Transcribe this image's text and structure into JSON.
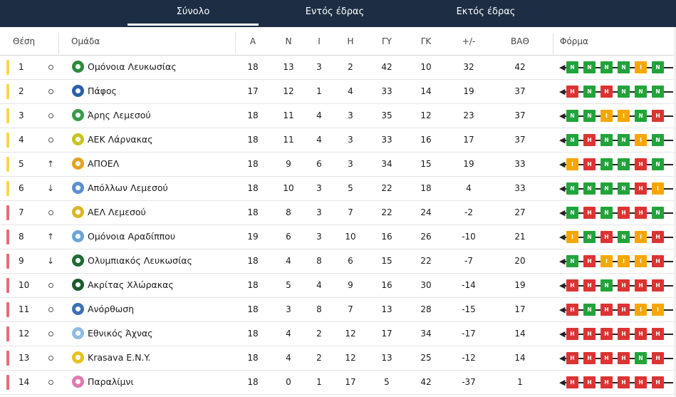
{
  "tabs": [
    {
      "label": "Σύνολο",
      "active": true
    },
    {
      "label": "Εντός έδρας",
      "active": false
    },
    {
      "label": "Εκτός έδρας",
      "active": false
    }
  ],
  "headers": {
    "pos": "Θέση",
    "team": "Ομάδα",
    "played": "Α",
    "won": "Ν",
    "draw": "Ι",
    "lost": "Η",
    "gf": "ΓΥ",
    "ga": "ΓΚ",
    "diff": "+/-",
    "pts": "ΒΑΘ",
    "form": "Φόρμα"
  },
  "colors": {
    "win": "#21a43a",
    "draw": "#f5a700",
    "loss": "#dd3333",
    "zone_top": "#f7d84a",
    "zone_bottom": "#e96b78",
    "tabs_bg": "#1c2d44"
  },
  "form_letters": {
    "W": "N",
    "D": "I",
    "L": "H"
  },
  "rows": [
    {
      "pos": "1",
      "move": "same",
      "team": "Ομόνοια Λευκωσίας",
      "p": "18",
      "w": "13",
      "d": "3",
      "l": "2",
      "gf": "42",
      "ga": "10",
      "diff": "32",
      "pts": "42",
      "form": [
        "W",
        "W",
        "W",
        "W",
        "D",
        "W"
      ],
      "zone": "top",
      "logo": "#2b8a3e"
    },
    {
      "pos": "2",
      "move": "same",
      "team": "Πάφος",
      "p": "17",
      "w": "12",
      "d": "1",
      "l": "4",
      "gf": "33",
      "ga": "14",
      "diff": "19",
      "pts": "37",
      "form": [
        "L",
        "W",
        "L",
        "W",
        "W",
        "W"
      ],
      "zone": "top",
      "logo": "#2a5fa8"
    },
    {
      "pos": "3",
      "move": "same",
      "team": "Άρης Λεμεσού",
      "p": "18",
      "w": "11",
      "d": "4",
      "l": "3",
      "gf": "35",
      "ga": "12",
      "diff": "23",
      "pts": "37",
      "form": [
        "W",
        "W",
        "D",
        "D",
        "W",
        "L"
      ],
      "zone": "top",
      "logo": "#3a9a4b"
    },
    {
      "pos": "4",
      "move": "same",
      "team": "ΑΕΚ Λάρνακας",
      "p": "18",
      "w": "11",
      "d": "4",
      "l": "3",
      "gf": "33",
      "ga": "16",
      "diff": "17",
      "pts": "37",
      "form": [
        "W",
        "L",
        "W",
        "W",
        "D",
        "W"
      ],
      "zone": "top",
      "logo": "#c6c51f"
    },
    {
      "pos": "5",
      "move": "up",
      "team": "ΑΠΟΕΛ",
      "p": "18",
      "w": "9",
      "d": "6",
      "l": "3",
      "gf": "34",
      "ga": "15",
      "diff": "19",
      "pts": "33",
      "form": [
        "D",
        "L",
        "W",
        "W",
        "L",
        "W"
      ],
      "zone": "top",
      "logo": "#e5a321"
    },
    {
      "pos": "6",
      "move": "down",
      "team": "Απόλλων Λεμεσού",
      "p": "18",
      "w": "10",
      "d": "3",
      "l": "5",
      "gf": "22",
      "ga": "18",
      "diff": "4",
      "pts": "33",
      "form": [
        "W",
        "W",
        "W",
        "W",
        "L",
        "D"
      ],
      "zone": "top",
      "logo": "#5a8fd0"
    },
    {
      "pos": "7",
      "move": "same",
      "team": "ΑΕΛ Λεμεσού",
      "p": "18",
      "w": "8",
      "d": "3",
      "l": "7",
      "gf": "22",
      "ga": "24",
      "diff": "-2",
      "pts": "27",
      "form": [
        "W",
        "L",
        "W",
        "L",
        "L",
        "W"
      ],
      "zone": "bottom",
      "logo": "#d9b72a"
    },
    {
      "pos": "8",
      "move": "up",
      "team": "Ομόνοια Αραδίππου",
      "p": "19",
      "w": "6",
      "d": "3",
      "l": "10",
      "gf": "16",
      "ga": "26",
      "diff": "-10",
      "pts": "21",
      "form": [
        "D",
        "W",
        "L",
        "W",
        "D",
        "L"
      ],
      "zone": "bottom",
      "logo": "#6ba4d8"
    },
    {
      "pos": "9",
      "move": "down",
      "team": "Ολυμπιακός Λευκωσίας",
      "p": "18",
      "w": "4",
      "d": "8",
      "l": "6",
      "gf": "15",
      "ga": "22",
      "diff": "-7",
      "pts": "20",
      "form": [
        "W",
        "L",
        "D",
        "D",
        "D",
        "L"
      ],
      "zone": "bottom",
      "logo": "#1f6a35"
    },
    {
      "pos": "10",
      "move": "same",
      "team": "Ακρίτας Χλώρακας",
      "p": "18",
      "w": "5",
      "d": "4",
      "l": "9",
      "gf": "16",
      "ga": "30",
      "diff": "-14",
      "pts": "19",
      "form": [
        "L",
        "L",
        "W",
        "L",
        "L",
        "L"
      ],
      "zone": "bottom",
      "logo": "#1a5c2e"
    },
    {
      "pos": "11",
      "move": "same",
      "team": "Ανόρθωση",
      "p": "18",
      "w": "3",
      "d": "8",
      "l": "7",
      "gf": "13",
      "ga": "28",
      "diff": "-15",
      "pts": "17",
      "form": [
        "L",
        "W",
        "L",
        "L",
        "D",
        "D"
      ],
      "zone": "bottom",
      "logo": "#3b6fb6"
    },
    {
      "pos": "12",
      "move": "same",
      "team": "Εθνικός Άχνας",
      "p": "18",
      "w": "4",
      "d": "2",
      "l": "12",
      "gf": "17",
      "ga": "34",
      "diff": "-17",
      "pts": "14",
      "form": [
        "L",
        "L",
        "L",
        "L",
        "L",
        "L"
      ],
      "zone": "bottom",
      "logo": "#8fbbe0"
    },
    {
      "pos": "13",
      "move": "same",
      "team": "Krasava E.N.Y.",
      "p": "18",
      "w": "4",
      "d": "2",
      "l": "12",
      "gf": "13",
      "ga": "25",
      "diff": "-12",
      "pts": "14",
      "form": [
        "L",
        "L",
        "L",
        "L",
        "W",
        "L"
      ],
      "zone": "bottom",
      "logo": "#e7c21e"
    },
    {
      "pos": "14",
      "move": "same",
      "team": "Παραλίμνι",
      "p": "18",
      "w": "0",
      "d": "1",
      "l": "17",
      "gf": "5",
      "ga": "42",
      "diff": "-37",
      "pts": "1",
      "form": [
        "L",
        "L",
        "L",
        "L",
        "L",
        "L"
      ],
      "zone": "bottom",
      "logo": "#e07ab0"
    }
  ]
}
